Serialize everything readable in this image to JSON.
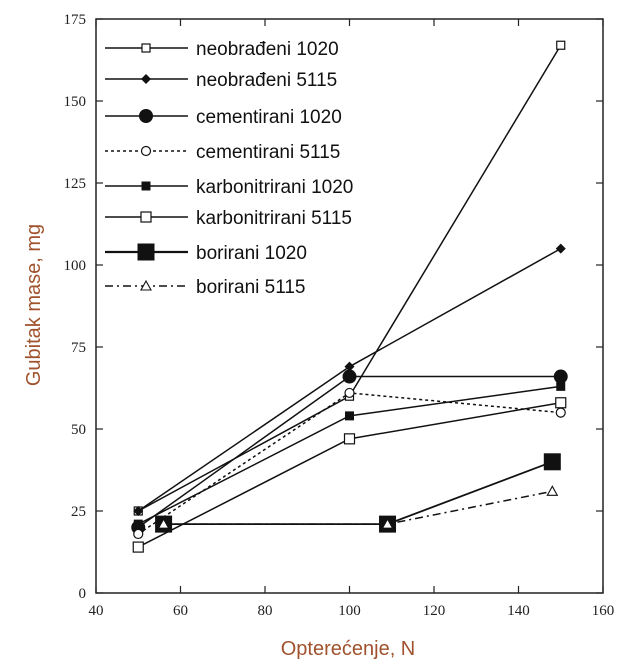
{
  "chart_data": {
    "type": "line",
    "title": "",
    "xlabel": "Opterećenje, N",
    "ylabel": "Gubitak mase, mg",
    "xlim": [
      40,
      160
    ],
    "ylim": [
      0,
      175
    ],
    "xticks": [
      40,
      60,
      80,
      100,
      120,
      140,
      160
    ],
    "yticks": [
      0,
      25,
      50,
      75,
      100,
      125,
      150,
      175
    ],
    "grid": false,
    "legend_position": "top-left",
    "colors": {
      "axis": "#222222",
      "series": "#111111",
      "axis_title": "#a0522d"
    },
    "series": [
      {
        "name": "neobrađeni 1020",
        "marker": "open-square-small",
        "line": "solid",
        "x": [
          50,
          100,
          150
        ],
        "y": [
          25,
          60,
          167
        ]
      },
      {
        "name": "neobrađeni 5115",
        "marker": "filled-diamond",
        "line": "solid",
        "x": [
          50,
          100,
          150
        ],
        "y": [
          25,
          69,
          105
        ]
      },
      {
        "name": "cementirani 1020",
        "marker": "filled-circle",
        "line": "solid",
        "x": [
          50,
          100,
          150
        ],
        "y": [
          20,
          66,
          66
        ]
      },
      {
        "name": "cementirani 5115",
        "marker": "open-circle",
        "line": "dotted",
        "x": [
          50,
          100,
          150
        ],
        "y": [
          18,
          61,
          55
        ]
      },
      {
        "name": "karbonitrirani 1020",
        "marker": "filled-square-small",
        "line": "solid",
        "x": [
          50,
          100,
          150
        ],
        "y": [
          21,
          54,
          63
        ]
      },
      {
        "name": "karbonitrirani 5115",
        "marker": "open-square",
        "line": "solid",
        "x": [
          50,
          100,
          150
        ],
        "y": [
          14,
          47,
          58
        ]
      },
      {
        "name": "borirani 1020",
        "marker": "filled-square-large",
        "line": "solid",
        "x": [
          56,
          109,
          148
        ],
        "y": [
          21,
          21,
          40
        ]
      },
      {
        "name": "borirani 5115",
        "marker": "open-triangle",
        "line": "dashdot",
        "x": [
          56,
          109,
          148
        ],
        "y": [
          21,
          21,
          31
        ]
      }
    ]
  }
}
